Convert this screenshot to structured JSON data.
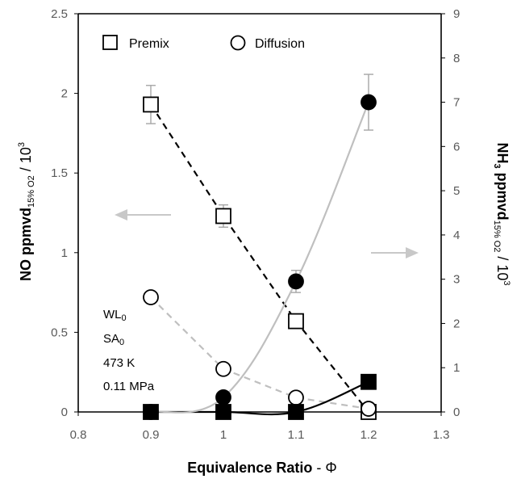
{
  "chart_data": {
    "type": "scatter",
    "title": "",
    "x_axis": {
      "label": "Equivalence Ratio",
      "symbol": "Φ",
      "range": [
        0.8,
        1.3
      ],
      "ticks": [
        "0.8",
        "0.9",
        "1",
        "1.1",
        "1.2",
        "1.3"
      ]
    },
    "y_axis_left": {
      "label_main": "NO ppmvd",
      "label_sub": "15% O2",
      "label_unit": "/ 10",
      "label_exp": "3",
      "range": [
        0,
        2.5
      ],
      "ticks": [
        "0",
        "0.5",
        "1",
        "1.5",
        "2",
        "2.5"
      ]
    },
    "y_axis_right": {
      "label_main": "NH",
      "label_sub1": "3",
      "label_main2": " ppmvd",
      "label_sub2": "15% O2",
      "label_unit": "/ 10",
      "label_exp": "3",
      "range": [
        0,
        9
      ],
      "ticks": [
        "0",
        "1",
        "2",
        "3",
        "4",
        "5",
        "6",
        "7",
        "8",
        "9"
      ]
    },
    "legend": {
      "placement": "top-left",
      "entries": [
        {
          "marker": "open-square",
          "label": "Premix"
        },
        {
          "marker": "open-circle",
          "label": "Diffusion"
        }
      ]
    },
    "annotations": {
      "lines": [
        {
          "main": "WL",
          "sub": "0"
        },
        {
          "main": "SA",
          "sub": "0"
        },
        {
          "main": "473 K",
          "sub": ""
        },
        {
          "main": "0.11 MPa",
          "sub": ""
        }
      ],
      "arrows": [
        {
          "direction": "left",
          "axis": "left",
          "color": "#c8c8c8"
        },
        {
          "direction": "right",
          "axis": "right",
          "color": "#c8c8c8"
        }
      ]
    },
    "series": [
      {
        "marker": "open-square",
        "axis": "left",
        "line": "dashed",
        "line_color": "#000000",
        "x": [
          0.9,
          1.0,
          1.1,
          1.2
        ],
        "y": [
          1.93,
          1.23,
          0.57,
          0.0
        ],
        "err": [
          0.12,
          0.07,
          0.0,
          0.0
        ]
      },
      {
        "marker": "open-circle",
        "axis": "left",
        "line": "dashed",
        "line_color": "#bfbfbf",
        "x": [
          0.9,
          1.0,
          1.1,
          1.2
        ],
        "y": [
          0.72,
          0.27,
          0.09,
          0.02
        ],
        "err": [
          0,
          0,
          0,
          0
        ]
      },
      {
        "marker": "filled-square",
        "axis": "right",
        "line": "solid",
        "line_color": "#000000",
        "x": [
          0.9,
          1.0,
          1.1,
          1.2
        ],
        "y": [
          0.0,
          0.0,
          0.0,
          0.68
        ],
        "err": [
          0,
          0,
          0,
          0
        ]
      },
      {
        "marker": "filled-circle",
        "axis": "right",
        "line": "solid",
        "line_color": "#bfbfbf",
        "x": [
          0.9,
          1.0,
          1.1,
          1.2
        ],
        "y": [
          0.0,
          0.33,
          2.95,
          7.0
        ],
        "err": [
          0,
          0,
          0.25,
          0.63
        ]
      }
    ],
    "colors": {
      "axis": "#000000",
      "tick_text": "#595959",
      "errorbar": "#a6a6a6",
      "dark_line": "#000000",
      "light_line": "#bfbfbf"
    }
  }
}
